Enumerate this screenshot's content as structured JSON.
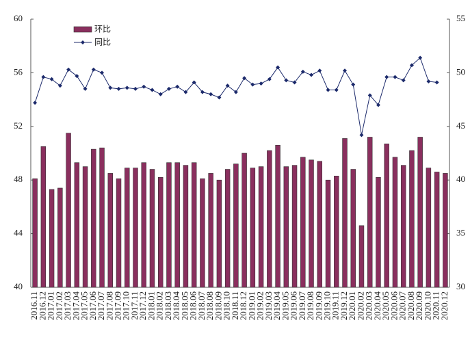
{
  "chart_data": {
    "type": "bar_line",
    "legend": "upper left",
    "categories": [
      "2016.11",
      "2016.12",
      "2017.01",
      "2017.02",
      "2017.03",
      "2017.04",
      "2017.05",
      "2017.06",
      "2017.07",
      "2017.08",
      "2017.09",
      "2017.10",
      "2017.11",
      "2017.12",
      "2018.01",
      "2018.02",
      "2018.03",
      "2018.04",
      "2018.05",
      "2018.06",
      "2018.07",
      "2018.08",
      "2018.09",
      "2018.10",
      "2018.11",
      "2018.12",
      "2019.01",
      "2019.02",
      "2019.03",
      "2019.04",
      "2019.05",
      "2019.06",
      "2019.07",
      "2019.08",
      "2019.09",
      "2019.10",
      "2019.11",
      "2019.12",
      "2020.01",
      "2020.02",
      "2020.03",
      "2020.04",
      "2020.05",
      "2020.06",
      "2020.07",
      "2020.08",
      "2020.09",
      "2020.10",
      "2020.11",
      "2020.12"
    ],
    "series": [
      {
        "name": "环比",
        "type": "bar",
        "axis": "y",
        "color": "#8a2f5e",
        "values": [
          48.1,
          50.5,
          47.3,
          47.4,
          51.5,
          49.3,
          49.0,
          50.3,
          50.4,
          48.5,
          48.1,
          48.9,
          48.9,
          49.3,
          48.8,
          48.2,
          49.3,
          49.3,
          49.1,
          49.3,
          48.1,
          48.5,
          48.0,
          48.8,
          49.2,
          50.0,
          48.9,
          49.0,
          50.2,
          50.6,
          49.0,
          49.1,
          49.7,
          49.5,
          49.4,
          48.0,
          48.3,
          51.1,
          48.8,
          44.6,
          51.2,
          48.2,
          50.7,
          49.7,
          49.1,
          50.2,
          51.2,
          48.9,
          48.6,
          48.5
        ]
      },
      {
        "name": "同比",
        "type": "line",
        "axis": "y2",
        "color": "#1c2a6b",
        "values": [
          47.2,
          49.6,
          49.4,
          48.8,
          50.3,
          49.7,
          48.5,
          50.3,
          50.0,
          48.6,
          48.5,
          48.6,
          48.5,
          48.7,
          48.4,
          48.0,
          48.5,
          48.7,
          48.2,
          49.1,
          48.2,
          48.0,
          47.7,
          48.8,
          48.2,
          49.5,
          48.9,
          49.0,
          49.4,
          50.5,
          49.3,
          49.1,
          50.1,
          49.8,
          50.2,
          48.4,
          48.4,
          50.2,
          48.9,
          44.2,
          47.9,
          47.0,
          49.6,
          49.6,
          49.3,
          50.7,
          51.4,
          49.2,
          49.1,
          null
        ]
      }
    ],
    "ylim": [
      40,
      60
    ],
    "yticks": [
      40,
      44,
      48,
      52,
      56,
      60
    ],
    "y2lim": [
      30,
      55
    ],
    "y2ticks": [
      30,
      35,
      40,
      45,
      50,
      55
    ]
  }
}
